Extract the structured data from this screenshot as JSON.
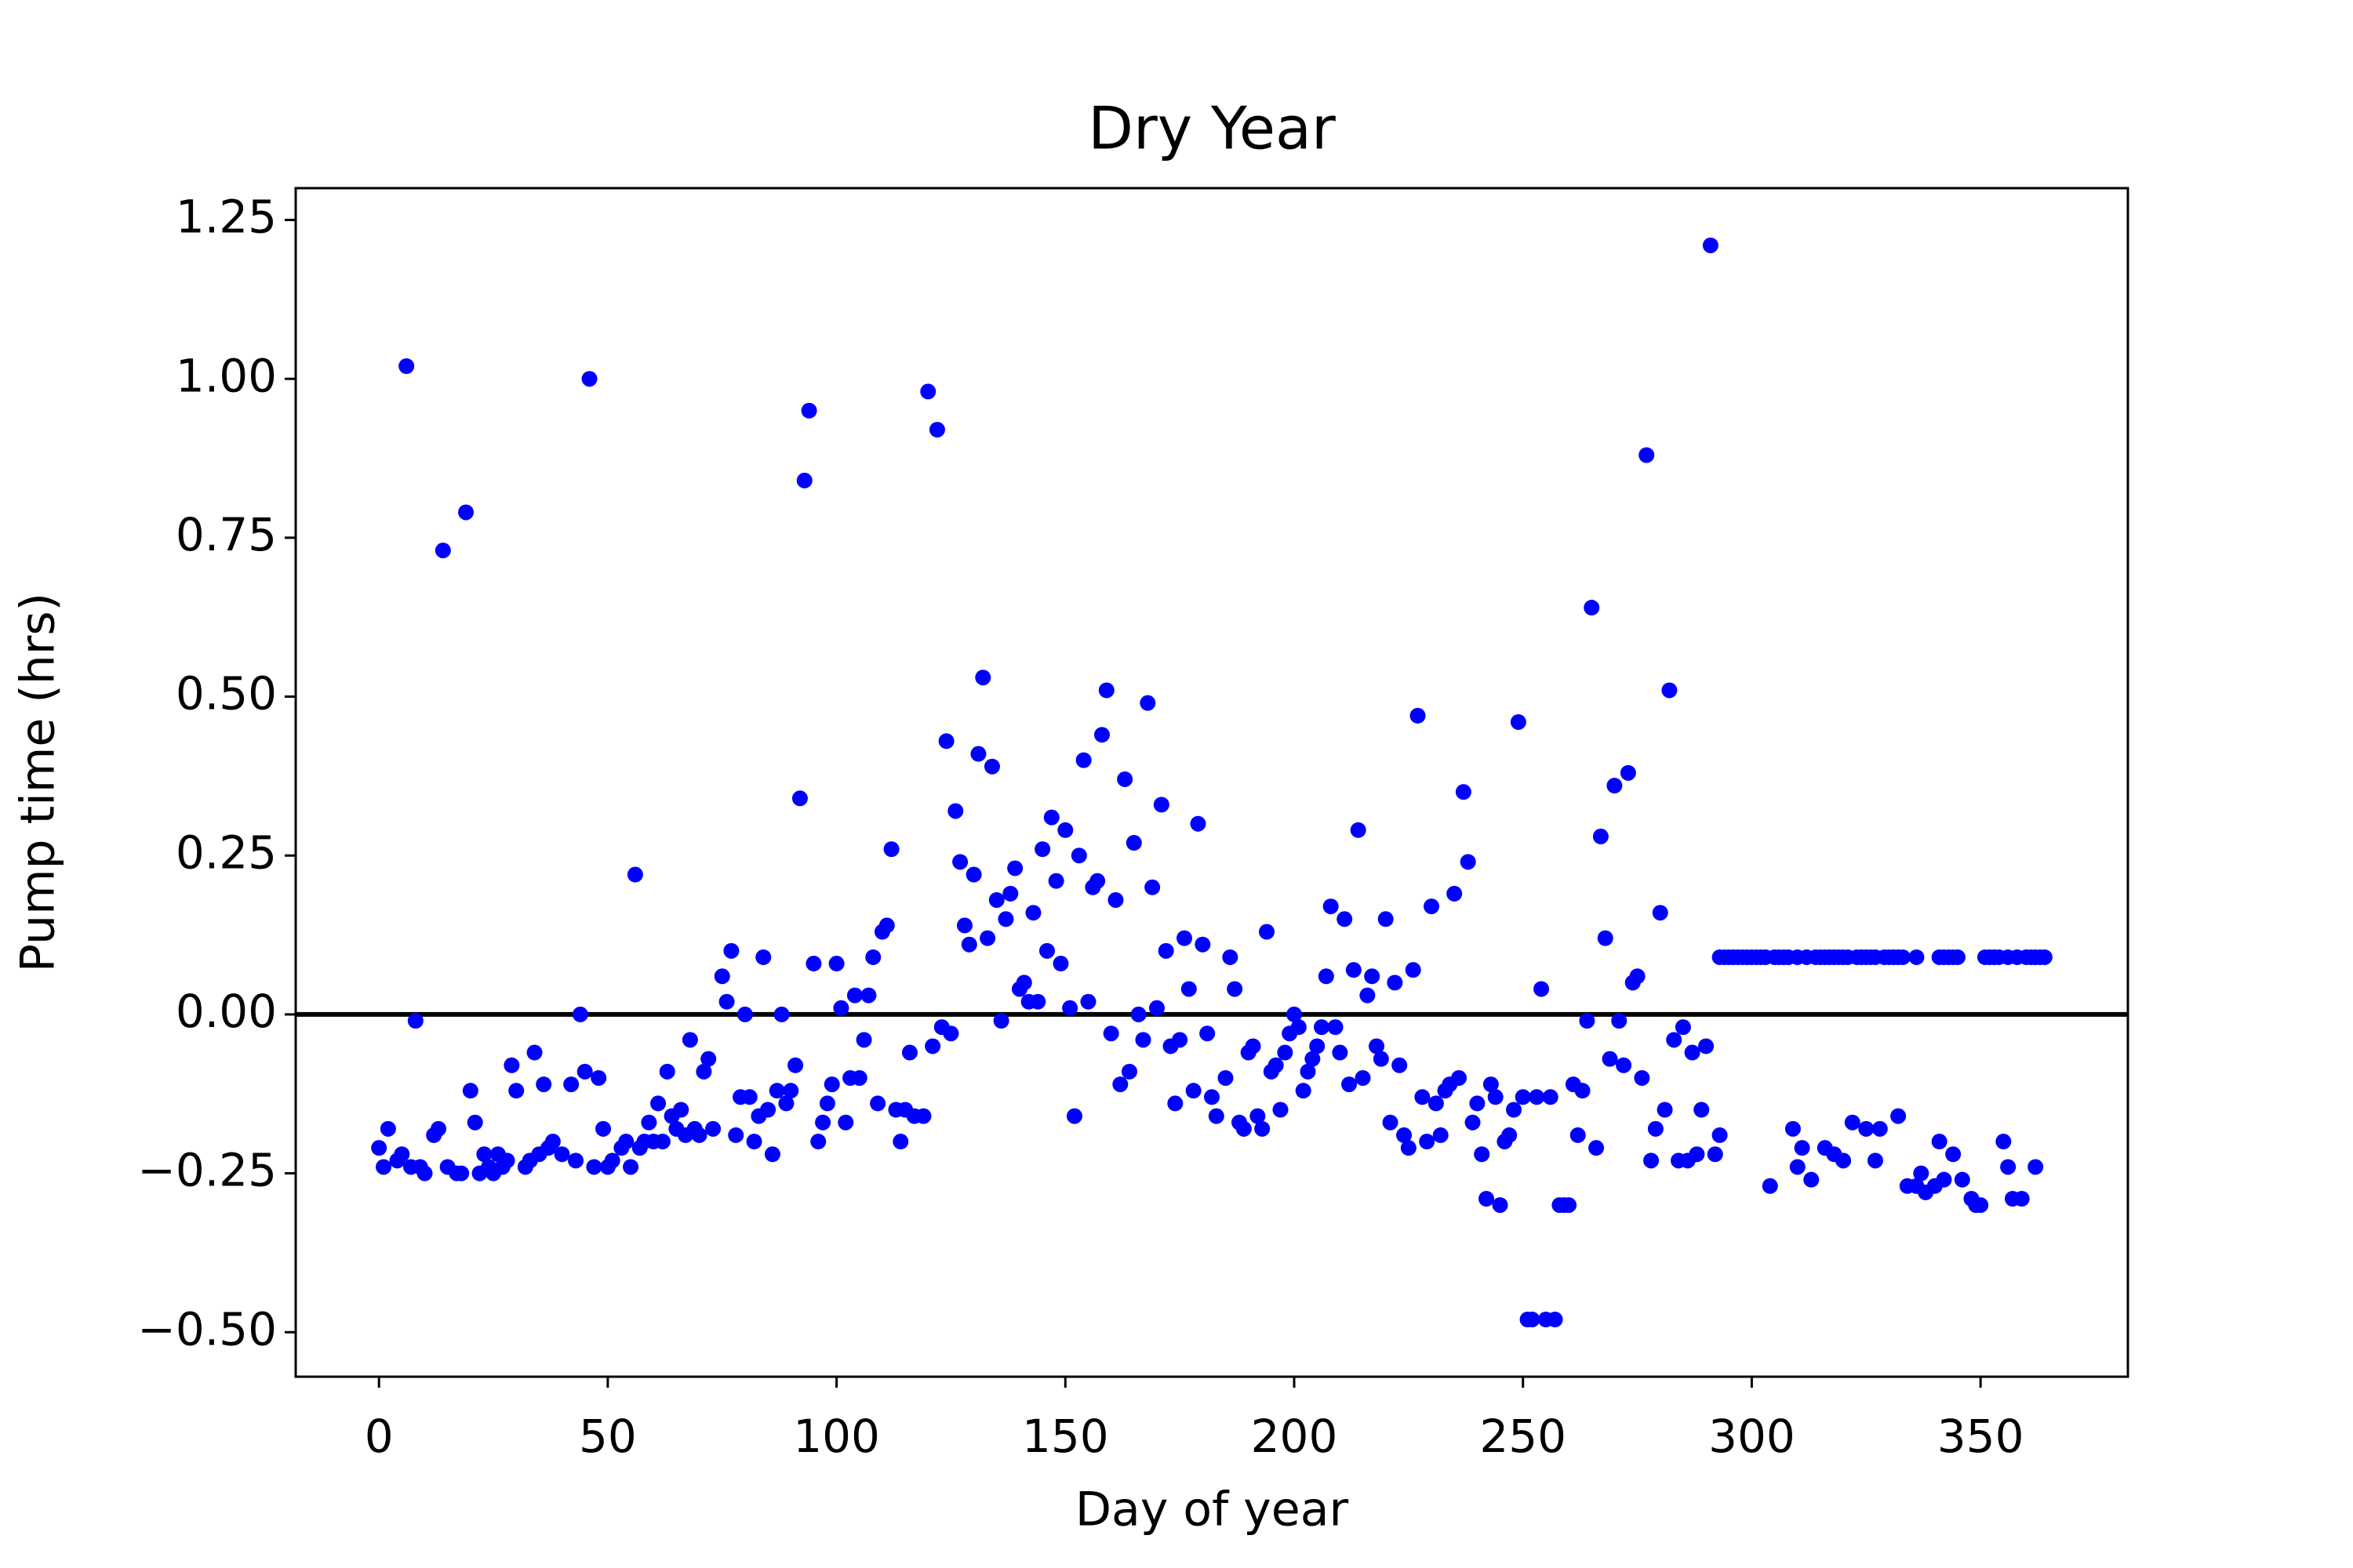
{
  "chart_data": {
    "type": "scatter",
    "title": "Dry Year",
    "xlabel": "Day of year",
    "ylabel": "Pump time (hrs)",
    "xlim": [
      -18.2,
      382.2
    ],
    "ylim": [
      -0.57,
      1.3
    ],
    "xticks": [
      0,
      50,
      100,
      150,
      200,
      250,
      300,
      350
    ],
    "yticks": [
      {
        "value": -0.5,
        "label": "−0.50"
      },
      {
        "value": -0.25,
        "label": "−0.25"
      },
      {
        "value": 0,
        "label": "0.00"
      },
      0.25,
      {
        "value": 0.5,
        "label": "0.50"
      },
      0.75,
      {
        "value": 1,
        "label": "1.00"
      },
      1.25
    ],
    "grid": false,
    "hline": 0,
    "hline_color": "#000000",
    "series": [
      {
        "color": "#0000ff",
        "x": [
          0,
          1,
          2,
          4,
          5,
          6,
          7,
          8,
          9,
          10,
          12,
          13,
          14,
          15,
          17,
          18,
          19,
          20,
          21,
          22,
          23,
          24,
          25,
          26,
          27,
          28,
          29,
          30,
          32,
          33,
          34,
          35,
          36,
          37,
          38,
          40,
          42,
          43,
          44,
          45,
          46,
          47,
          48,
          49,
          50,
          51,
          53,
          54,
          55,
          56,
          57,
          58,
          59,
          60,
          61,
          62,
          63,
          64,
          65,
          66,
          67,
          68,
          69,
          70,
          71,
          72,
          73,
          75,
          76,
          77,
          78,
          79,
          80,
          81,
          82,
          83,
          84,
          85,
          86,
          87,
          88,
          89,
          90,
          91,
          92,
          93,
          94,
          95,
          96,
          97,
          98,
          99,
          100,
          101,
          102,
          103,
          104,
          105,
          106,
          107,
          108,
          109,
          110,
          111,
          112,
          113,
          114,
          115,
          116,
          117,
          119,
          120,
          121,
          122,
          123,
          124,
          125,
          126,
          127,
          128,
          129,
          130,
          131,
          132,
          133,
          134,
          135,
          136,
          137,
          138,
          139,
          140,
          141,
          142,
          143,
          144,
          145,
          146,
          147,
          148,
          149,
          150,
          151,
          152,
          153,
          154,
          155,
          156,
          157,
          158,
          159,
          160,
          161,
          162,
          163,
          164,
          165,
          166,
          167,
          168,
          169,
          170,
          171,
          172,
          173,
          174,
          175,
          176,
          177,
          178,
          179,
          180,
          181,
          182,
          183,
          185,
          186,
          187,
          188,
          189,
          190,
          191,
          192,
          193,
          194,
          195,
          196,
          197,
          198,
          199,
          200,
          201,
          202,
          203,
          204,
          205,
          206,
          207,
          208,
          209,
          210,
          211,
          212,
          213,
          214,
          215,
          216,
          217,
          218,
          219,
          220,
          221,
          222,
          223,
          224,
          225,
          226,
          227,
          228,
          229,
          230,
          231,
          232,
          233,
          234,
          235,
          236,
          237,
          238,
          239,
          240,
          241,
          242,
          243,
          244,
          245,
          246,
          247,
          248,
          249,
          250,
          251,
          252,
          253,
          254,
          255,
          256,
          257,
          258,
          259,
          260,
          261,
          262,
          263,
          264,
          265,
          266,
          267,
          268,
          269,
          270,
          271,
          272,
          273,
          274,
          275,
          276,
          277,
          278,
          279,
          280,
          281,
          282,
          283,
          284,
          285,
          286,
          287,
          288,
          289,
          290,
          291,
          292,
          293,
          293,
          294,
          295,
          296,
          297,
          298,
          299,
          300,
          301,
          302,
          303,
          305,
          306,
          307,
          308,
          310,
          312,
          314,
          315,
          316,
          317,
          318,
          319,
          320,
          321,
          323,
          324,
          325,
          326,
          327,
          329,
          330,
          331,
          332,
          333,
          336,
          341,
          342,
          343,
          344,
          345,
          351,
          352,
          353,
          354,
          356,
          358,
          360,
          361,
          362,
          363,
          364,
          304,
          309,
          310,
          311,
          313,
          316,
          318,
          320,
          322,
          325,
          327,
          328,
          332,
          334,
          336,
          337,
          338,
          340,
          341,
          342,
          344,
          346,
          348,
          349,
          350,
          355,
          356,
          357,
          359,
          362
        ],
        "values": [
          -0.21,
          -0.24,
          -0.18,
          -0.23,
          -0.22,
          1.02,
          -0.24,
          -0.01,
          -0.24,
          -0.25,
          -0.19,
          -0.18,
          0.73,
          -0.24,
          -0.25,
          -0.25,
          0.79,
          -0.12,
          -0.17,
          -0.25,
          -0.22,
          -0.24,
          -0.25,
          -0.22,
          -0.24,
          -0.23,
          -0.08,
          -0.12,
          -0.24,
          -0.23,
          -0.06,
          -0.22,
          -0.11,
          -0.21,
          -0.2,
          -0.22,
          -0.11,
          -0.23,
          0.0,
          -0.09,
          1.0,
          -0.24,
          -0.1,
          -0.18,
          -0.24,
          -0.23,
          -0.21,
          -0.2,
          -0.24,
          0.22,
          -0.21,
          -0.2,
          -0.17,
          -0.2,
          -0.14,
          -0.2,
          -0.09,
          -0.16,
          -0.18,
          -0.15,
          -0.19,
          -0.04,
          -0.18,
          -0.19,
          -0.09,
          -0.07,
          -0.18,
          0.06,
          0.02,
          0.1,
          -0.19,
          -0.13,
          0.0,
          -0.13,
          -0.2,
          -0.16,
          0.09,
          -0.15,
          -0.22,
          -0.12,
          0.0,
          -0.14,
          -0.12,
          -0.08,
          0.34,
          0.84,
          0.95,
          0.08,
          -0.2,
          -0.17,
          -0.14,
          -0.11,
          0.08,
          0.01,
          -0.17,
          -0.1,
          0.03,
          -0.1,
          -0.04,
          0.03,
          0.09,
          -0.14,
          0.13,
          0.14,
          0.26,
          -0.15,
          -0.2,
          -0.15,
          -0.06,
          -0.16,
          -0.16,
          0.98,
          -0.05,
          0.92,
          -0.02,
          0.43,
          -0.03,
          0.32,
          0.24,
          0.14,
          0.11,
          0.22,
          0.41,
          0.53,
          0.12,
          0.39,
          0.18,
          -0.01,
          0.15,
          0.19,
          0.23,
          0.04,
          0.05,
          0.02,
          0.16,
          0.02,
          0.26,
          0.1,
          0.31,
          0.21,
          0.08,
          0.29,
          0.01,
          -0.16,
          0.25,
          0.4,
          0.02,
          0.2,
          0.21,
          0.44,
          0.51,
          -0.03,
          0.18,
          -0.11,
          0.37,
          -0.09,
          0.27,
          0.0,
          -0.04,
          0.49,
          0.2,
          0.01,
          0.33,
          0.1,
          -0.05,
          -0.14,
          -0.04,
          0.12,
          0.04,
          -0.12,
          0.3,
          0.11,
          -0.03,
          -0.13,
          -0.16,
          -0.1,
          0.09,
          0.04,
          -0.17,
          -0.18,
          -0.06,
          -0.05,
          -0.16,
          -0.18,
          0.13,
          -0.09,
          -0.08,
          -0.15,
          -0.06,
          -0.03,
          0.0,
          -0.02,
          -0.12,
          -0.09,
          -0.07,
          -0.05,
          -0.02,
          0.06,
          0.17,
          -0.02,
          -0.06,
          0.15,
          -0.11,
          0.07,
          0.29,
          -0.1,
          0.03,
          0.06,
          -0.05,
          -0.07,
          0.15,
          -0.17,
          0.05,
          -0.08,
          -0.19,
          -0.21,
          0.07,
          0.47,
          -0.13,
          -0.2,
          0.17,
          -0.14,
          -0.19,
          -0.12,
          -0.11,
          0.19,
          -0.1,
          0.35,
          0.24,
          -0.17,
          -0.14,
          -0.22,
          -0.29,
          -0.11,
          -0.13,
          -0.3,
          -0.2,
          -0.19,
          -0.15,
          0.46,
          -0.13,
          -0.48,
          -0.48,
          -0.13,
          0.04,
          -0.48,
          -0.13,
          -0.48,
          -0.3,
          -0.3,
          -0.3,
          -0.11,
          -0.19,
          -0.12,
          -0.01,
          0.64,
          -0.21,
          0.28,
          0.12,
          -0.07,
          0.36,
          -0.01,
          -0.08,
          0.38,
          0.05,
          0.06,
          -0.1,
          0.88,
          -0.23,
          -0.18,
          0.16,
          -0.15,
          0.51,
          -0.04,
          -0.23,
          -0.02,
          -0.23,
          -0.06,
          -0.22,
          -0.15,
          -0.05,
          1.21,
          -0.22,
          -0.19,
          0.09,
          0.09,
          0.09,
          0.09,
          0.09,
          0.09,
          0.09,
          0.09,
          0.09,
          0.09,
          0.09,
          0.09,
          0.09,
          0.09,
          0.09,
          0.09,
          0.09,
          0.09,
          0.09,
          0.09,
          0.09,
          0.09,
          0.09,
          0.09,
          0.09,
          0.09,
          0.09,
          0.09,
          0.09,
          0.09,
          0.09,
          0.09,
          0.09,
          0.09,
          0.09,
          0.09,
          0.09,
          0.09,
          0.09,
          0.09,
          0.09,
          0.09,
          0.09,
          0.09,
          0.09,
          0.09,
          0.09,
          0.09,
          0.09,
          0.09,
          0.09,
          0.09,
          -0.27,
          -0.18,
          -0.24,
          -0.21,
          -0.26,
          -0.21,
          -0.22,
          -0.23,
          -0.17,
          -0.18,
          -0.23,
          -0.18,
          -0.16,
          -0.27,
          -0.27,
          -0.25,
          -0.28,
          -0.27,
          -0.2,
          -0.26,
          -0.22,
          -0.26,
          -0.29,
          -0.3,
          -0.3,
          -0.2,
          -0.24,
          -0.29,
          -0.29,
          -0.24
        ]
      }
    ]
  }
}
